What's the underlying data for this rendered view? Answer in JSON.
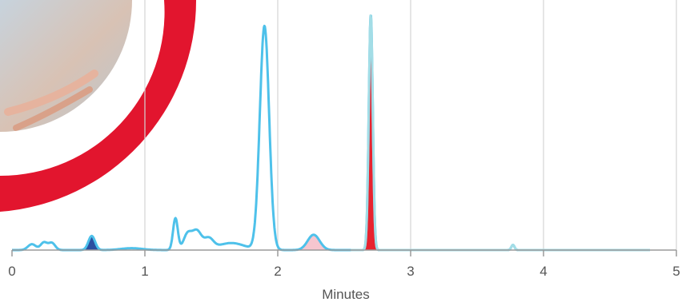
{
  "chart_data": {
    "type": "line",
    "title": "",
    "xlabel": "Minutes",
    "ylabel": "",
    "xlim": [
      0,
      5
    ],
    "ylim": [
      0,
      100
    ],
    "x_ticks": [
      {
        "value": 0,
        "label": "0"
      },
      {
        "value": 1,
        "label": "1"
      },
      {
        "value": 2,
        "label": "2"
      },
      {
        "value": 3,
        "label": "3"
      },
      {
        "value": 4,
        "label": "4"
      },
      {
        "value": 5,
        "label": "5"
      }
    ],
    "grid": "vertical",
    "series": [
      {
        "color": "#4ec1ea",
        "peaks": [
          {
            "time": 0.15,
            "height": 2.5,
            "width": 0.03
          },
          {
            "time": 0.24,
            "height": 3.2,
            "width": 0.025
          },
          {
            "time": 0.3,
            "height": 3.0,
            "width": 0.025
          },
          {
            "time": 0.6,
            "height": 6.0,
            "width": 0.025
          },
          {
            "time": 0.9,
            "height": 0.8,
            "width": 0.08
          },
          {
            "time": 1.23,
            "height": 13.5,
            "width": 0.018
          },
          {
            "time": 1.32,
            "height": 6.5,
            "width": 0.03
          },
          {
            "time": 1.39,
            "height": 8.0,
            "width": 0.035
          },
          {
            "time": 1.48,
            "height": 4.5,
            "width": 0.035
          },
          {
            "time": 1.65,
            "height": 3.0,
            "width": 0.1
          },
          {
            "time": 1.9,
            "height": 95.0,
            "width": 0.035
          },
          {
            "time": 2.27,
            "height": 6.5,
            "width": 0.045
          },
          {
            "time": 2.7,
            "height": 100.0,
            "width": 0.015
          },
          {
            "time": 3.77,
            "height": 2.2,
            "width": 0.012
          }
        ]
      }
    ],
    "highlighted_peaks": [
      {
        "color": "#2b4ea0",
        "time": 0.6,
        "from": 0.53,
        "to": 0.68
      },
      {
        "color": "#f6c6cf",
        "time": 2.27,
        "from": 2.12,
        "to": 2.44
      },
      {
        "color": "#e8232f",
        "time": 2.7,
        "from": 2.62,
        "to": 2.79
      }
    ],
    "overlay_line_color": "#a3dde6"
  }
}
